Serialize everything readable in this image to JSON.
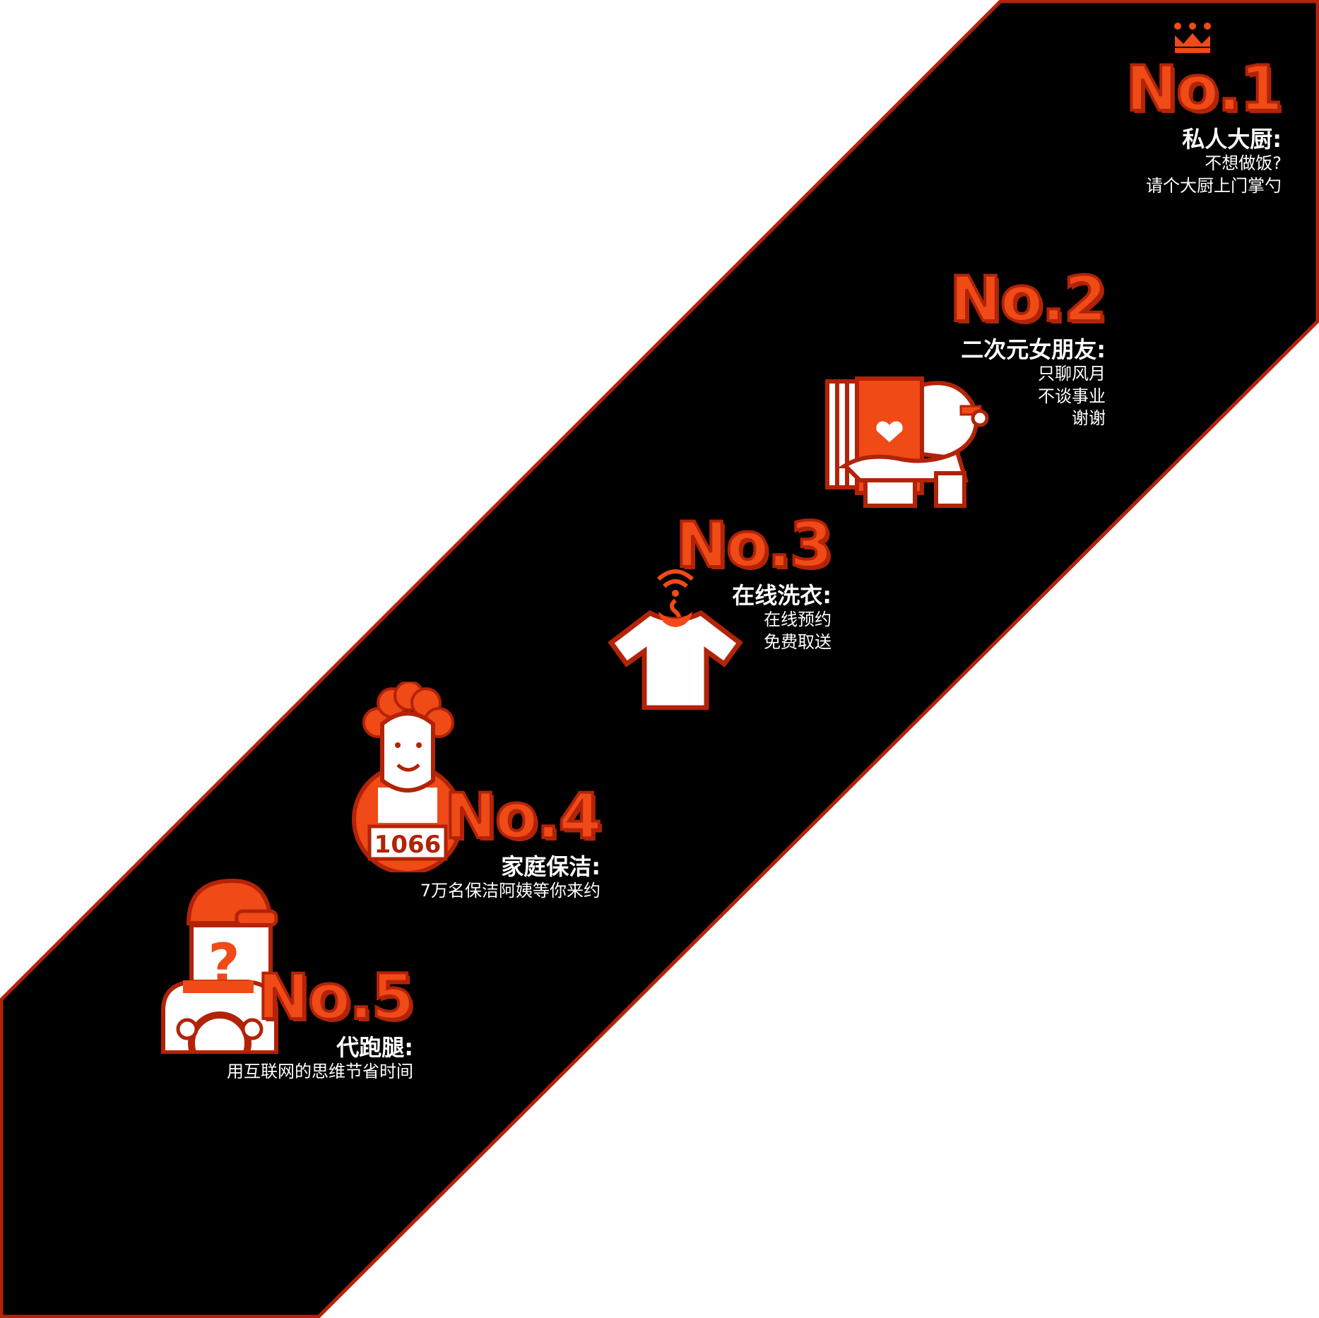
{
  "colors": {
    "accent": "#f04a17",
    "accent_dark": "#b22308",
    "band": "#000000",
    "text": "#ffffff"
  },
  "items": [
    {
      "rank": "No.1",
      "title": "私人大厨:",
      "lines": [
        "不想做饭?",
        "请个大厨上门掌勺"
      ],
      "icon": "crown-icon"
    },
    {
      "rank": "No.2",
      "title": "二次元女朋友:",
      "lines": [
        "只聊风月",
        "不谈事业",
        "谢谢"
      ],
      "icon": "anime-girlfriend-icon"
    },
    {
      "rank": "No.3",
      "title": "在线洗衣:",
      "lines": [
        "在线预约",
        "免费取送"
      ],
      "icon": "tshirt-hanger-icon"
    },
    {
      "rank": "No.4",
      "title": "家庭保洁:",
      "lines": [
        "7万名保洁阿姨等你来约"
      ],
      "icon": "cleaner-icon",
      "badge": "1066"
    },
    {
      "rank": "No.5",
      "title": "代跑腿:",
      "lines": [
        "用互联网的思维节省时间"
      ],
      "icon": "courier-icon",
      "mark": "?"
    }
  ]
}
